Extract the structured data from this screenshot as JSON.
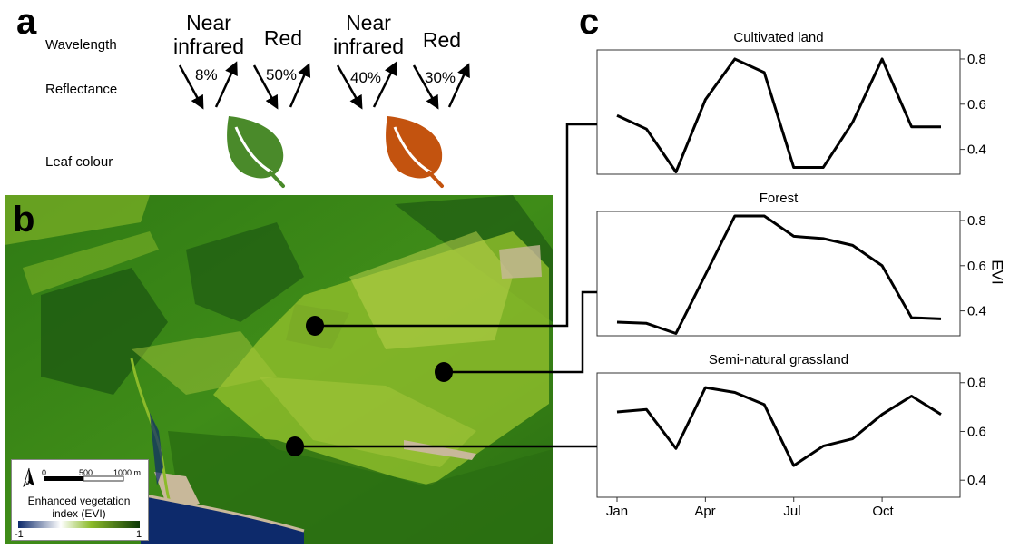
{
  "panel_a": {
    "letter": "a",
    "row_labels": {
      "wavelength": "Wavelength",
      "reflectance": "Reflectance",
      "leaf_colour": "Leaf colour"
    },
    "leaves": [
      {
        "nir_label": "Near\ninfrared",
        "nir_pct": "8%",
        "red_label": "Red",
        "red_pct": "50%",
        "color": "#4a8a2a"
      },
      {
        "nir_label": "Near\ninfrared",
        "nir_pct": "40%",
        "red_label": "Red",
        "red_pct": "30%",
        "color": "#c3530f"
      }
    ]
  },
  "panel_b": {
    "letter": "b",
    "scale": {
      "start": "0",
      "mid": "500",
      "end": "1000 m"
    },
    "north": "N",
    "legend_title": "Enhanced vegetation index (EVI)",
    "legend_min": "-1",
    "legend_max": "1",
    "colors": {
      "water": "#0d2a6b",
      "dark_green": "#1e5a12",
      "green": "#3f8c18",
      "light_green": "#8cbb2a",
      "pale": "#b8d04a",
      "sand": "#c8b89a"
    }
  },
  "panel_c": {
    "letter": "c",
    "ylabel": "EVI",
    "x_ticks": [
      "Jan",
      "Apr",
      "Jul",
      "Oct"
    ]
  },
  "chart_data": [
    {
      "type": "line",
      "title": "Cultivated land",
      "ylabel": "EVI",
      "x": [
        1,
        2,
        3,
        4,
        5,
        6,
        7,
        8,
        9,
        10,
        11,
        12
      ],
      "values": [
        0.55,
        0.49,
        0.3,
        0.62,
        0.8,
        0.74,
        0.32,
        0.32,
        0.52,
        0.8,
        0.5,
        0.5
      ],
      "y_ticks": [
        0.4,
        0.6,
        0.8
      ],
      "ylim": [
        0.29,
        0.84
      ]
    },
    {
      "type": "line",
      "title": "Forest",
      "ylabel": "EVI",
      "x": [
        1,
        2,
        3,
        4,
        5,
        6,
        7,
        8,
        9,
        10,
        11,
        12
      ],
      "values": [
        0.35,
        0.345,
        0.3,
        0.56,
        0.82,
        0.82,
        0.73,
        0.72,
        0.69,
        0.6,
        0.37,
        0.365
      ],
      "y_ticks": [
        0.4,
        0.6,
        0.8
      ],
      "ylim": [
        0.29,
        0.84
      ]
    },
    {
      "type": "line",
      "title": "Semi-natural grassland",
      "ylabel": "EVI",
      "x": [
        1,
        2,
        3,
        4,
        5,
        6,
        7,
        8,
        9,
        10,
        11,
        12
      ],
      "values": [
        0.68,
        0.69,
        0.53,
        0.78,
        0.76,
        0.71,
        0.46,
        0.54,
        0.57,
        0.67,
        0.745,
        0.67
      ],
      "y_ticks": [
        0.4,
        0.6,
        0.8
      ],
      "ylim": [
        0.33,
        0.84
      ]
    }
  ]
}
